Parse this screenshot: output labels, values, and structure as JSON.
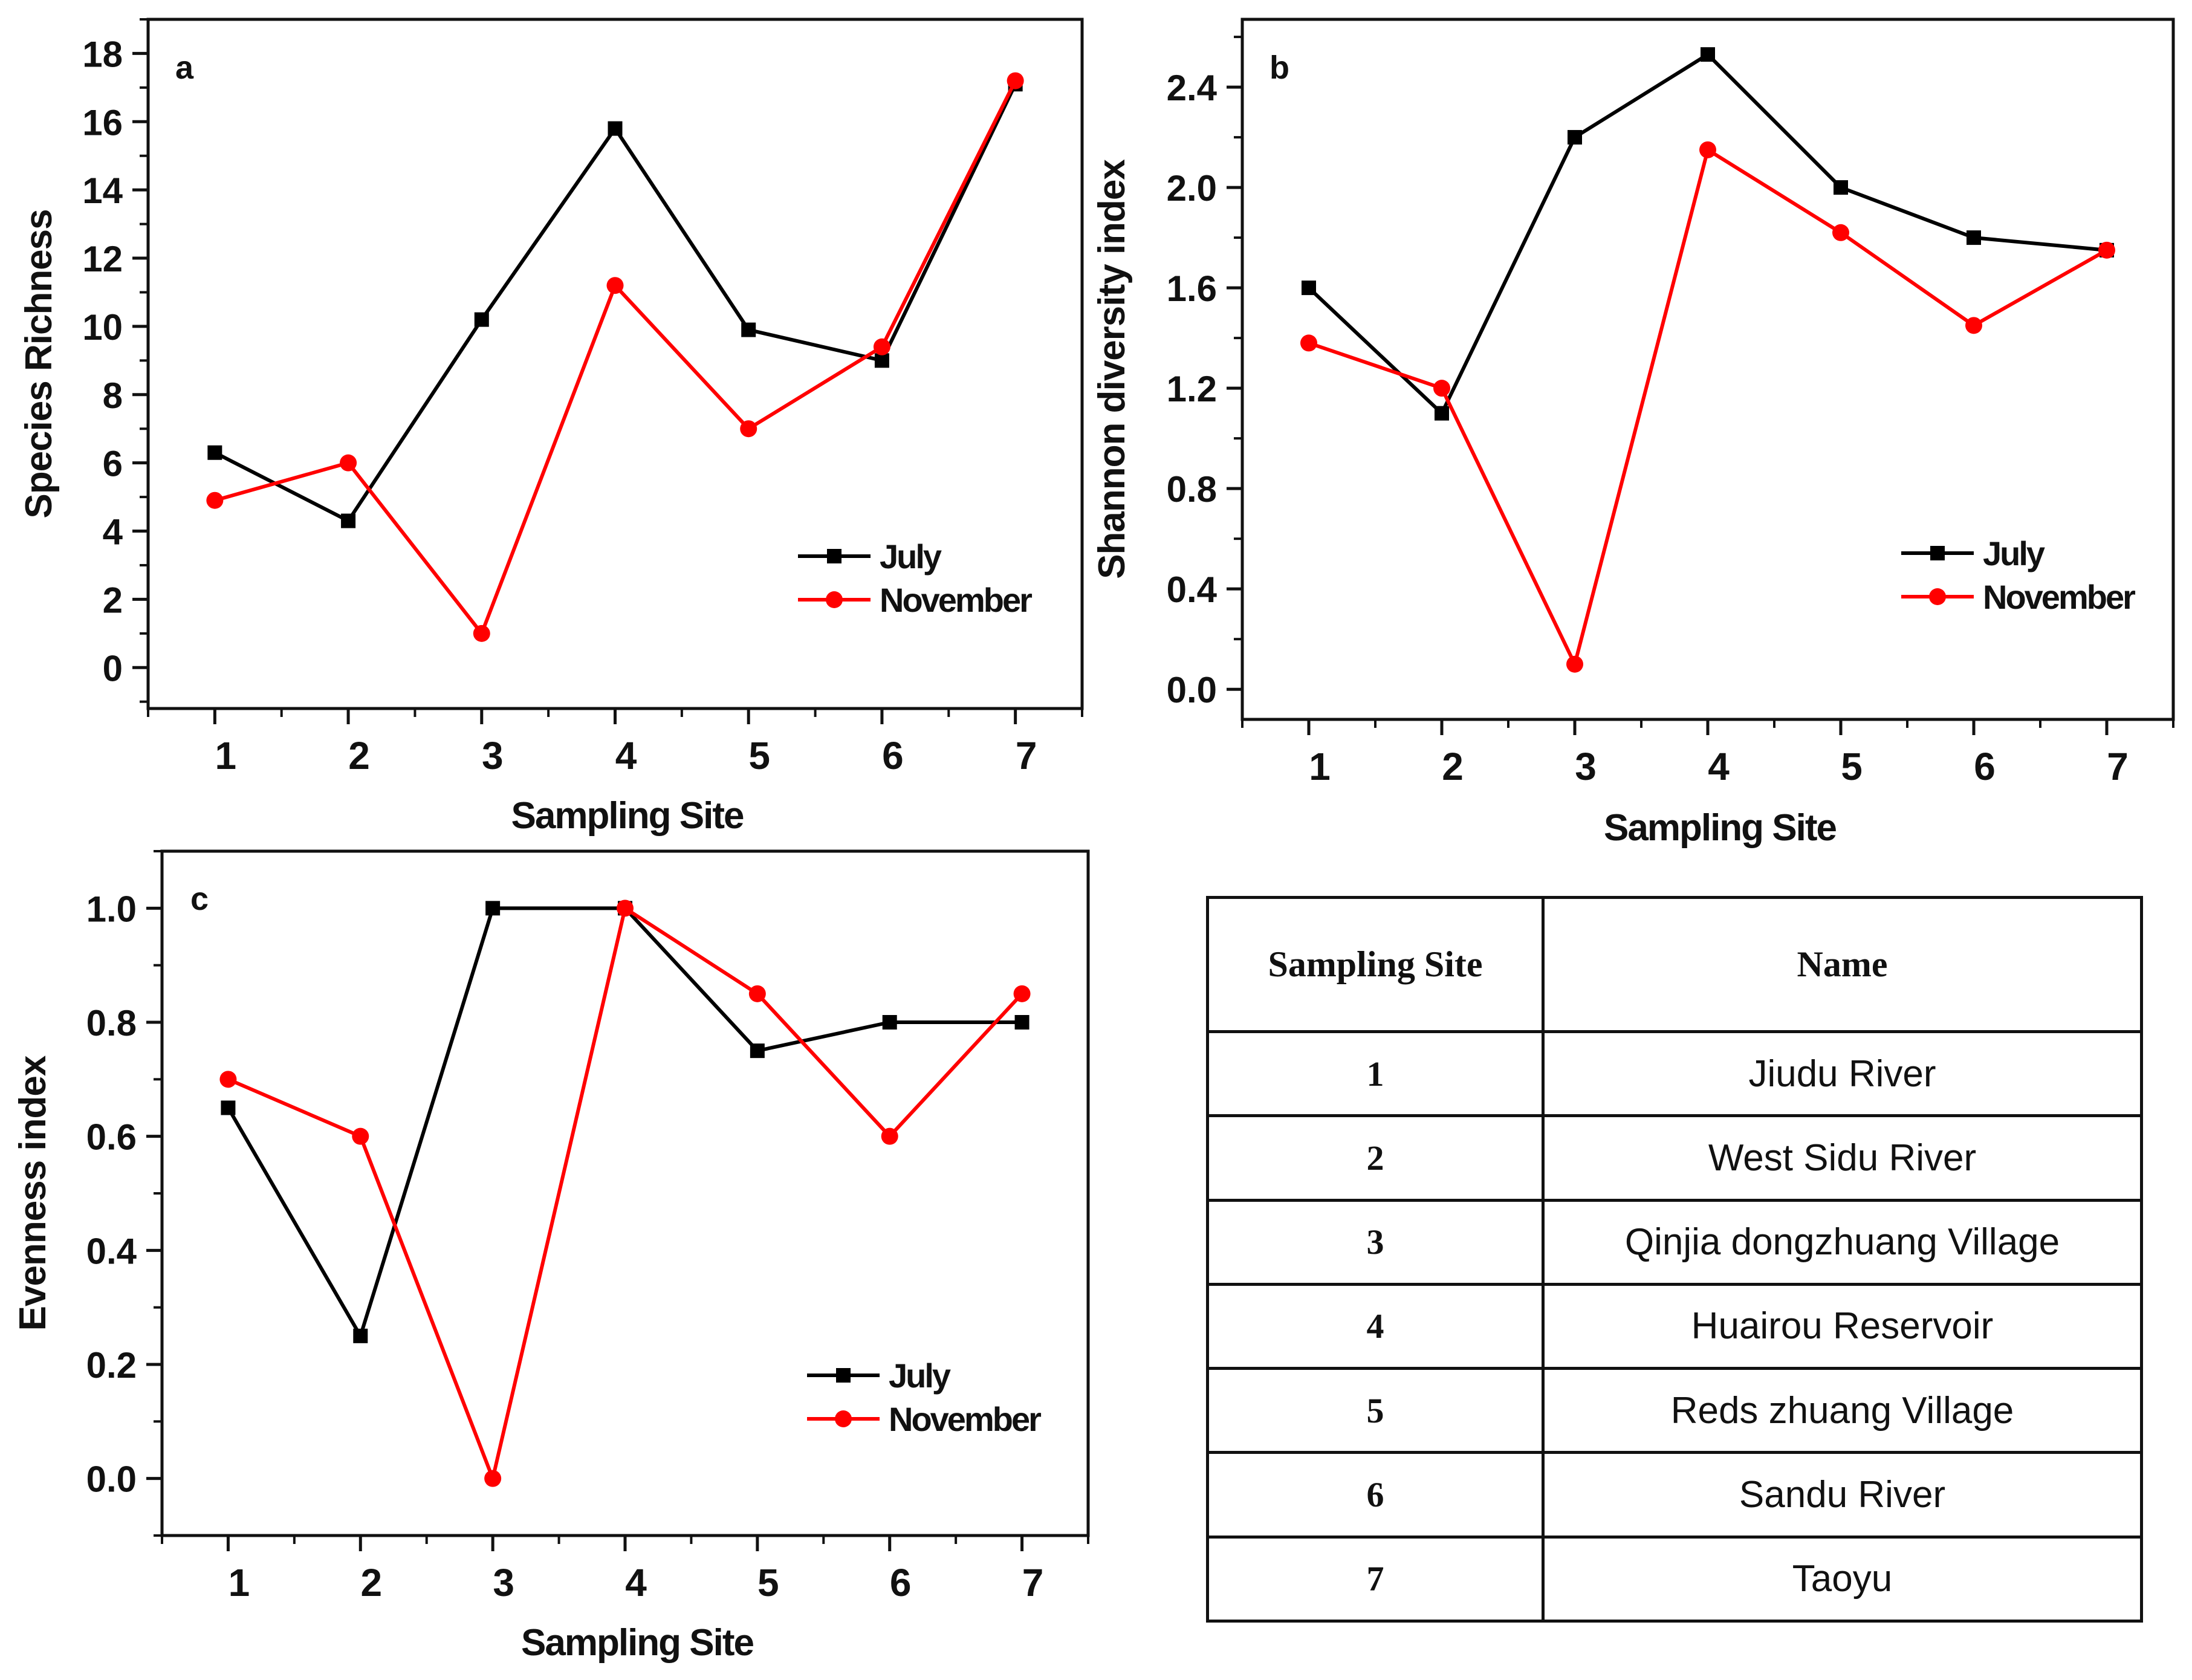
{
  "chart_data": [
    {
      "type": "line",
      "panel_label": "a",
      "title": "",
      "xlabel": "Sampling Site",
      "ylabel": "Species Richness",
      "x": [
        1,
        2,
        3,
        4,
        5,
        6,
        7
      ],
      "x_ticks": [
        "1",
        "2",
        "3",
        "4",
        "5",
        "6",
        "7"
      ],
      "xlim": [
        0.5,
        7.5
      ],
      "ylim": [
        -1.2,
        19
      ],
      "y_ticks": [
        0,
        2,
        4,
        6,
        8,
        10,
        12,
        14,
        16,
        18
      ],
      "y_tick_labels": [
        "0",
        "2",
        "4",
        "6",
        "8",
        "10",
        "12",
        "14",
        "16",
        "18"
      ],
      "series": [
        {
          "name": "July",
          "color": "#000000",
          "marker": "square",
          "values": [
            6.3,
            4.3,
            10.2,
            15.8,
            9.9,
            9.0,
            17.1
          ]
        },
        {
          "name": "November",
          "color": "#ff0000",
          "marker": "circle",
          "values": [
            4.9,
            6.0,
            1.0,
            11.2,
            7.0,
            9.4,
            17.2
          ]
        }
      ],
      "legend": "lower-right"
    },
    {
      "type": "line",
      "panel_label": "b",
      "title": "",
      "xlabel": "Sampling Site",
      "ylabel": "Shannon diversity index",
      "x": [
        1,
        2,
        3,
        4,
        5,
        6,
        7
      ],
      "x_ticks": [
        "1",
        "2",
        "3",
        "4",
        "5",
        "6",
        "7"
      ],
      "xlim": [
        0.5,
        7.5
      ],
      "ylim": [
        -0.12,
        2.67
      ],
      "y_ticks": [
        0.0,
        0.4,
        0.8,
        1.2,
        1.6,
        2.0,
        2.4
      ],
      "y_tick_labels": [
        "0.0",
        "0.4",
        "0.8",
        "1.2",
        "1.6",
        "2.0",
        "2.4"
      ],
      "series": [
        {
          "name": "July",
          "color": "#000000",
          "marker": "square",
          "values": [
            1.6,
            1.1,
            2.2,
            2.53,
            2.0,
            1.8,
            1.75
          ]
        },
        {
          "name": "November",
          "color": "#ff0000",
          "marker": "circle",
          "values": [
            1.38,
            1.2,
            0.1,
            2.15,
            1.82,
            1.45,
            1.75
          ]
        }
      ],
      "legend": "lower-right"
    },
    {
      "type": "line",
      "panel_label": "c",
      "title": "",
      "xlabel": "Sampling Site",
      "ylabel": "Evenness index",
      "x": [
        1,
        2,
        3,
        4,
        5,
        6,
        7
      ],
      "x_ticks": [
        "1",
        "2",
        "3",
        "4",
        "5",
        "6",
        "7"
      ],
      "xlim": [
        0.5,
        7.5
      ],
      "ylim": [
        -0.1,
        1.1
      ],
      "y_ticks": [
        0.0,
        0.2,
        0.4,
        0.6,
        0.8,
        1.0
      ],
      "y_tick_labels": [
        "0.0",
        "0.2",
        "0.4",
        "0.6",
        "0.8",
        "1.0"
      ],
      "series": [
        {
          "name": "July",
          "color": "#000000",
          "marker": "square",
          "values": [
            0.65,
            0.25,
            1.0,
            1.0,
            0.75,
            0.8,
            0.8
          ]
        },
        {
          "name": "November",
          "color": "#ff0000",
          "marker": "circle",
          "values": [
            0.7,
            0.6,
            0.0,
            1.0,
            0.85,
            0.6,
            0.85
          ]
        }
      ],
      "legend": "lower-right"
    }
  ],
  "site_table": {
    "headers": [
      "Sampling Site",
      "Name"
    ],
    "rows": [
      [
        "1",
        "Jiudu River"
      ],
      [
        "2",
        "West Sidu River"
      ],
      [
        "3",
        "Qinjia dongzhuang Village"
      ],
      [
        "4",
        "Huairou Reservoir"
      ],
      [
        "5",
        "Reds zhuang Village"
      ],
      [
        "6",
        "Sandu River"
      ],
      [
        "7",
        "Taoyu"
      ]
    ]
  }
}
